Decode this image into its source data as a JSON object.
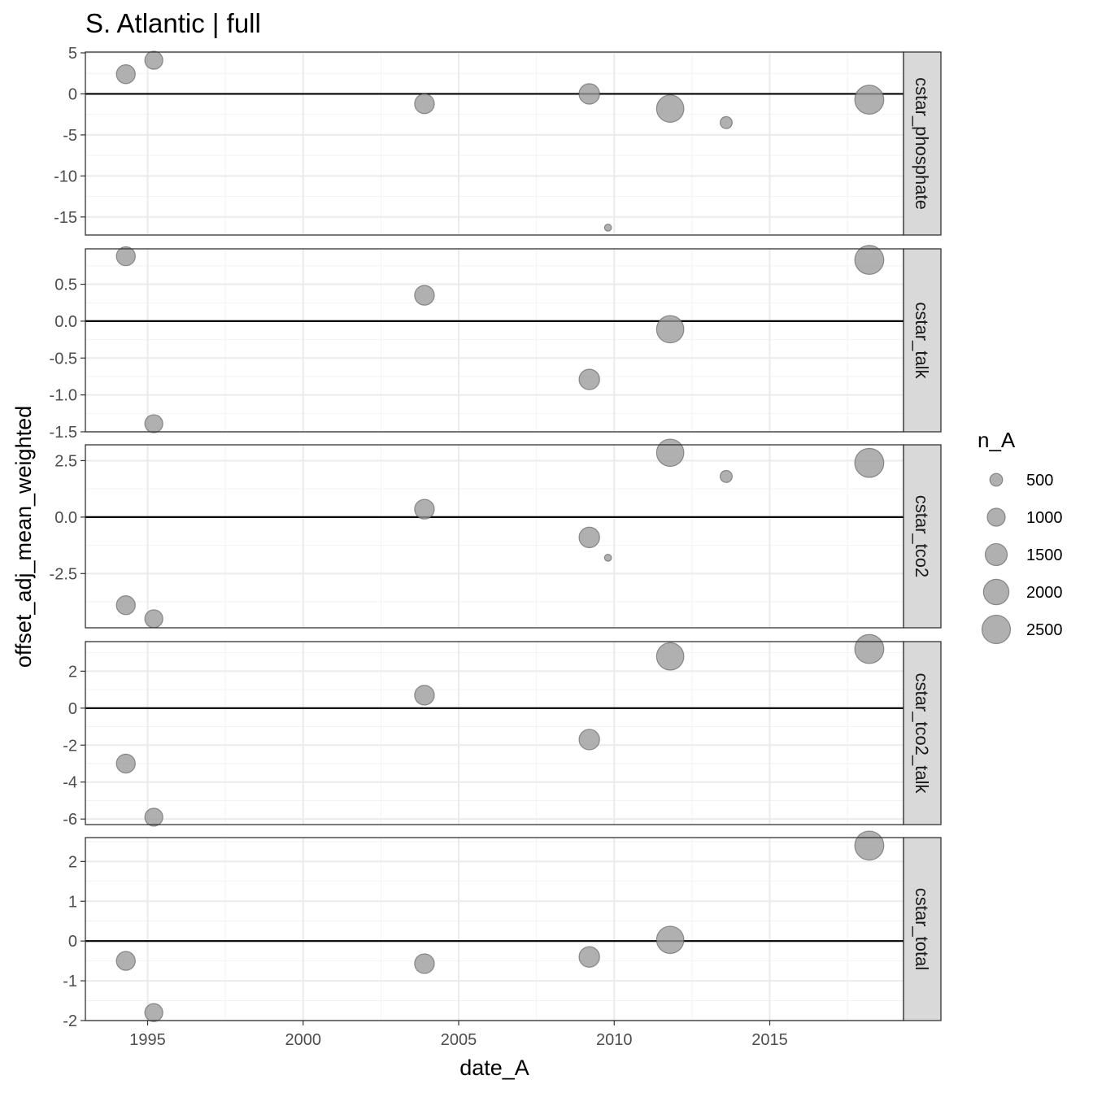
{
  "chart_data": {
    "type": "scatter",
    "title": "S. Atlantic | full",
    "xlabel": "date_A",
    "ylabel": "offset_adj_mean_weighted",
    "xlim": [
      1993.0,
      2019.3
    ],
    "x_ticks": [
      1995,
      2000,
      2005,
      2010,
      2015
    ],
    "x_tick_labels": [
      "1995",
      "2000",
      "2005",
      "2010",
      "2015"
    ],
    "grid": true,
    "point_color": "#9a9a9a",
    "point_stroke": "#555555",
    "strip_fill": "#d9d9d9",
    "size_legend": {
      "title": "n_A",
      "position": "right",
      "breaks": [
        500,
        1000,
        1500,
        2000,
        2500
      ],
      "labels": [
        "500",
        "1000",
        "1500",
        "2000",
        "2500"
      ]
    },
    "panels": [
      {
        "name": "cstar_phosphate",
        "ylim": [
          -17.2,
          5.1
        ],
        "y_ticks": [
          5,
          0,
          -5,
          -10,
          -15
        ],
        "y_tick_labels": [
          "5",
          "0",
          "-5",
          "-10",
          "-15"
        ],
        "points": [
          {
            "x": 1994.3,
            "y": 2.4,
            "n": 1100
          },
          {
            "x": 1995.2,
            "y": 4.1,
            "n": 1000
          },
          {
            "x": 2003.9,
            "y": -1.2,
            "n": 1200
          },
          {
            "x": 2009.2,
            "y": 0.0,
            "n": 1300
          },
          {
            "x": 2009.8,
            "y": -16.3,
            "n": 150
          },
          {
            "x": 2011.8,
            "y": -1.8,
            "n": 2300
          },
          {
            "x": 2013.6,
            "y": -3.5,
            "n": 450
          },
          {
            "x": 2018.2,
            "y": -0.7,
            "n": 2600
          }
        ]
      },
      {
        "name": "cstar_talk",
        "ylim": [
          -1.5,
          0.98
        ],
        "y_ticks": [
          0.5,
          0.0,
          -0.5,
          -1.0,
          -1.5
        ],
        "y_tick_labels": [
          "0.5",
          "0.0",
          "-0.5",
          "-1.0",
          "-1.5"
        ],
        "points": [
          {
            "x": 1994.3,
            "y": 0.88,
            "n": 1100
          },
          {
            "x": 1995.2,
            "y": -1.39,
            "n": 1000
          },
          {
            "x": 2003.9,
            "y": 0.35,
            "n": 1200
          },
          {
            "x": 2009.2,
            "y": -0.79,
            "n": 1300
          },
          {
            "x": 2011.8,
            "y": -0.11,
            "n": 2300
          },
          {
            "x": 2018.2,
            "y": 0.83,
            "n": 2600
          }
        ]
      },
      {
        "name": "cstar_tco2",
        "ylim": [
          -4.9,
          3.2
        ],
        "y_ticks": [
          2.5,
          0.0,
          -2.5
        ],
        "y_tick_labels": [
          "2.5",
          "0.0",
          "-2.5"
        ],
        "points": [
          {
            "x": 1994.3,
            "y": -3.9,
            "n": 1100
          },
          {
            "x": 1995.2,
            "y": -4.5,
            "n": 1000
          },
          {
            "x": 2003.9,
            "y": 0.35,
            "n": 1200
          },
          {
            "x": 2009.2,
            "y": -0.9,
            "n": 1300
          },
          {
            "x": 2009.8,
            "y": -1.8,
            "n": 150
          },
          {
            "x": 2011.8,
            "y": 2.85,
            "n": 2300
          },
          {
            "x": 2013.6,
            "y": 1.8,
            "n": 450
          },
          {
            "x": 2018.2,
            "y": 2.4,
            "n": 2600
          }
        ]
      },
      {
        "name": "cstar_tco2_talk",
        "ylim": [
          -6.3,
          3.6
        ],
        "y_ticks": [
          2,
          0,
          -2,
          -4,
          -6
        ],
        "y_tick_labels": [
          "2",
          "0",
          "-2",
          "-4",
          "-6"
        ],
        "points": [
          {
            "x": 1994.3,
            "y": -3.0,
            "n": 1100
          },
          {
            "x": 1995.2,
            "y": -5.9,
            "n": 1000
          },
          {
            "x": 2003.9,
            "y": 0.7,
            "n": 1200
          },
          {
            "x": 2009.2,
            "y": -1.7,
            "n": 1300
          },
          {
            "x": 2011.8,
            "y": 2.8,
            "n": 2300
          },
          {
            "x": 2018.2,
            "y": 3.2,
            "n": 2600
          }
        ]
      },
      {
        "name": "cstar_total",
        "ylim": [
          -2.0,
          2.6
        ],
        "y_ticks": [
          2,
          1,
          0,
          -1,
          -2
        ],
        "y_tick_labels": [
          "2",
          "1",
          "0",
          "-1",
          "-2"
        ],
        "points": [
          {
            "x": 1994.3,
            "y": -0.5,
            "n": 1100
          },
          {
            "x": 1995.2,
            "y": -1.8,
            "n": 1000
          },
          {
            "x": 2003.9,
            "y": -0.57,
            "n": 1200
          },
          {
            "x": 2009.2,
            "y": -0.4,
            "n": 1300
          },
          {
            "x": 2011.8,
            "y": 0.03,
            "n": 2300
          },
          {
            "x": 2018.2,
            "y": 2.4,
            "n": 2600
          }
        ]
      }
    ]
  }
}
